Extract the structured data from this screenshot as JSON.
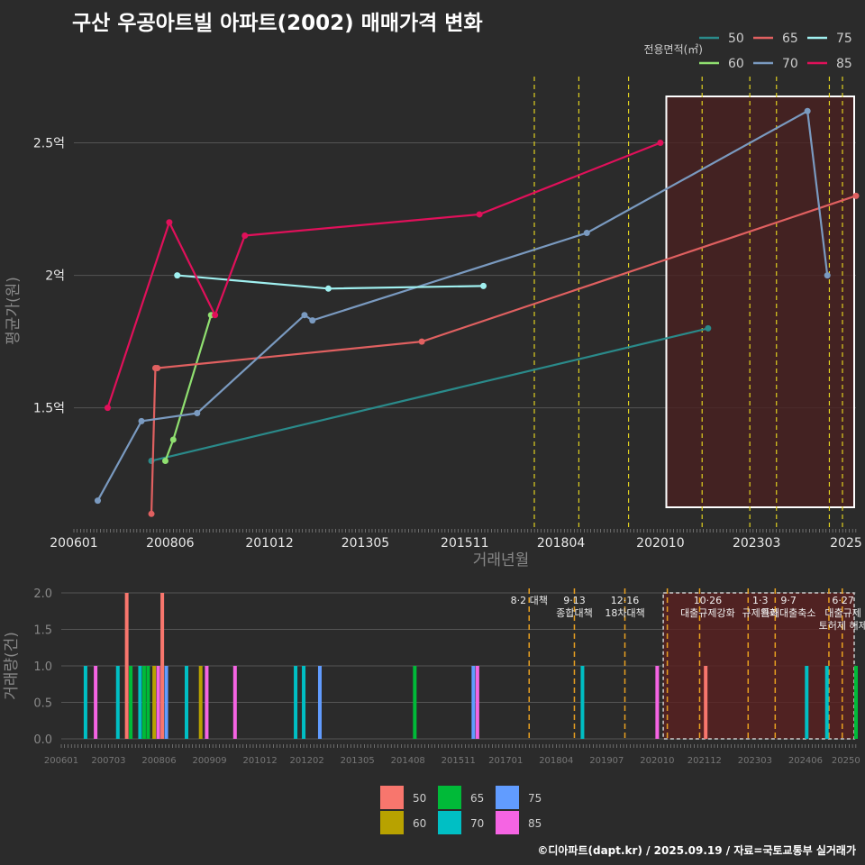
{
  "title": "구산 우공아트빌 아파트(2002) 매매가격 변화",
  "source": "©디아파트(dapt.kr) / 2025.09.19 / 자료=국토교통부 실거래가",
  "colors": {
    "50": "#2a8a8a",
    "60": "#90e070",
    "65": "#e06060",
    "70": "#7a9ac0",
    "75": "#a0f0f0",
    "85": "#e0105a",
    "b50": "#f8766d",
    "b60": "#b8a200",
    "b65": "#00ba38",
    "b70": "#00bfc4",
    "b75": "#619cff",
    "b85": "#f564e3"
  },
  "chart_data": [
    {
      "type": "line",
      "title": "구산 우공아트빌 아파트(2002) 매매가격 변화",
      "xlabel": "거래년월",
      "ylabel": "평균가(원)",
      "x_ticks": [
        "200601",
        "200806",
        "201012",
        "201305",
        "201511",
        "201804",
        "202010",
        "202303",
        "2025"
      ],
      "y_ticks": [
        {
          "v": 1.5,
          "label": "1.5억"
        },
        {
          "v": 2.0,
          "label": "2억"
        },
        {
          "v": 2.5,
          "label": "2.5억"
        }
      ],
      "xlim": [
        2006.0,
        2025.67
      ],
      "ylim": [
        1.05,
        2.75
      ],
      "legend_title": "전용면적(㎡)",
      "series": [
        {
          "name": "50",
          "points": [
            [
              2007.95,
              1.3
            ],
            [
              2021.95,
              1.8
            ]
          ]
        },
        {
          "name": "60",
          "points": [
            [
              2008.3,
              1.3
            ],
            [
              2008.5,
              1.38
            ],
            [
              2009.45,
              1.85
            ]
          ]
        },
        {
          "name": "65",
          "points": [
            [
              2007.95,
              1.1
            ],
            [
              2008.05,
              1.65
            ],
            [
              2008.1,
              1.65
            ],
            [
              2014.75,
              1.75
            ],
            [
              2025.67,
              2.3
            ]
          ]
        },
        {
          "name": "70",
          "points": [
            [
              2006.6,
              1.15
            ],
            [
              2007.7,
              1.45
            ],
            [
              2009.1,
              1.48
            ],
            [
              2011.8,
              1.85
            ],
            [
              2012.0,
              1.83
            ],
            [
              2018.9,
              2.16
            ],
            [
              2024.45,
              2.62
            ],
            [
              2024.95,
              2.0
            ]
          ]
        },
        {
          "name": "75",
          "points": [
            [
              2008.6,
              2.0
            ],
            [
              2012.4,
              1.95
            ],
            [
              2016.3,
              1.96
            ]
          ]
        },
        {
          "name": "85",
          "points": [
            [
              2006.85,
              1.5
            ],
            [
              2008.4,
              2.2
            ],
            [
              2009.55,
              1.85
            ],
            [
              2010.3,
              2.15
            ],
            [
              2016.2,
              2.23
            ],
            [
              2020.75,
              2.5
            ]
          ]
        }
      ],
      "policy_lines": [
        2017.58,
        2018.7,
        2019.95,
        2021.8,
        2023.0,
        2023.67,
        2025.0,
        2025.33
      ],
      "highlight_range": [
        2020.9,
        2025.67
      ]
    },
    {
      "type": "bar",
      "xlabel": "",
      "ylabel": "거래량(건)",
      "x_ticks": [
        "200601",
        "200703",
        "200806",
        "200909",
        "201012",
        "201202",
        "201305",
        "201408",
        "201511",
        "201701",
        "201804",
        "201907",
        "202010",
        "202112",
        "202303",
        "202406",
        "20250"
      ],
      "y_ticks": [
        "0.0",
        "0.5",
        "1.0",
        "1.5",
        "2.0"
      ],
      "xlim": [
        2006.0,
        2025.67
      ],
      "ylim": [
        0,
        2.0
      ],
      "legend": [
        "50",
        "60",
        "65",
        "70",
        "75",
        "85"
      ],
      "bars": [
        {
          "x": 2006.6,
          "v": 1,
          "s": "70"
        },
        {
          "x": 2006.85,
          "v": 1,
          "s": "85"
        },
        {
          "x": 2007.4,
          "v": 1,
          "s": "70"
        },
        {
          "x": 2007.62,
          "v": 2,
          "s": "50"
        },
        {
          "x": 2007.72,
          "v": 1,
          "s": "65"
        },
        {
          "x": 2007.95,
          "v": 1,
          "s": "70"
        },
        {
          "x": 2008.05,
          "v": 1,
          "s": "65"
        },
        {
          "x": 2008.15,
          "v": 1,
          "s": "65"
        },
        {
          "x": 2008.3,
          "v": 1,
          "s": "60"
        },
        {
          "x": 2008.4,
          "v": 1,
          "s": "85"
        },
        {
          "x": 2008.5,
          "v": 2,
          "s": "50"
        },
        {
          "x": 2008.6,
          "v": 1,
          "s": "75"
        },
        {
          "x": 2009.1,
          "v": 1,
          "s": "70"
        },
        {
          "x": 2009.45,
          "v": 1,
          "s": "60"
        },
        {
          "x": 2009.6,
          "v": 1,
          "s": "85"
        },
        {
          "x": 2010.3,
          "v": 1,
          "s": "85"
        },
        {
          "x": 2011.8,
          "v": 1,
          "s": "70"
        },
        {
          "x": 2012.0,
          "v": 1,
          "s": "70"
        },
        {
          "x": 2012.4,
          "v": 1,
          "s": "75"
        },
        {
          "x": 2014.75,
          "v": 1,
          "s": "65"
        },
        {
          "x": 2016.2,
          "v": 1,
          "s": "75"
        },
        {
          "x": 2016.3,
          "v": 1,
          "s": "85"
        },
        {
          "x": 2018.9,
          "v": 1,
          "s": "70"
        },
        {
          "x": 2020.75,
          "v": 1,
          "s": "85"
        },
        {
          "x": 2021.95,
          "v": 1,
          "s": "50"
        },
        {
          "x": 2024.45,
          "v": 1,
          "s": "70"
        },
        {
          "x": 2024.95,
          "v": 1,
          "s": "70"
        },
        {
          "x": 2025.67,
          "v": 1,
          "s": "65"
        }
      ],
      "policy_lines": [
        2017.58,
        2018.7,
        2019.95,
        2021.0,
        2021.8,
        2023.0,
        2023.67,
        2025.0,
        2025.33
      ],
      "highlight_range": [
        2020.9,
        2025.67
      ],
      "annotations": [
        {
          "x": 2017.58,
          "lines": [
            "8·2 대책"
          ]
        },
        {
          "x": 2018.7,
          "lines": [
            "9·13",
            "종합대책"
          ]
        },
        {
          "x": 2019.95,
          "lines": [
            "12·16",
            "18차대책"
          ]
        },
        {
          "x": 2022.0,
          "lines": [
            "10·26",
            "대출규제강화"
          ]
        },
        {
          "x": 2023.3,
          "lines": [
            "1·3",
            "규제완화"
          ]
        },
        {
          "x": 2024.0,
          "lines": [
            "9·7",
            "특례대출축소"
          ]
        },
        {
          "x": 2025.35,
          "lines": [
            "6·27",
            "대출규제",
            "토허제 해제"
          ]
        }
      ]
    }
  ]
}
